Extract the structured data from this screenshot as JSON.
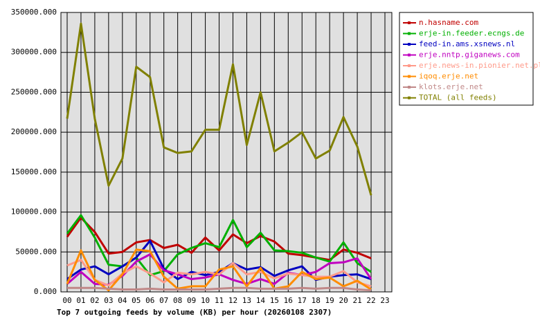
{
  "chart_data": {
    "type": "line",
    "title": "Top 7 outgoing feeds by volume (KB) per hour (20260108 2307)",
    "categories": [
      "00",
      "01",
      "02",
      "03",
      "04",
      "05",
      "06",
      "07",
      "08",
      "09",
      "10",
      "11",
      "12",
      "13",
      "14",
      "15",
      "16",
      "17",
      "18",
      "19",
      "20",
      "21",
      "22",
      "23"
    ],
    "ylim": [
      0,
      350000
    ],
    "yticks": [
      {
        "value": 0,
        "label": "0.000"
      },
      {
        "value": 50000,
        "label": "50000.000"
      },
      {
        "value": 100000,
        "label": "100000.000"
      },
      {
        "value": 150000,
        "label": "150000.000"
      },
      {
        "value": 200000,
        "label": "200000.000"
      },
      {
        "value": 250000,
        "label": "250000.000"
      },
      {
        "value": 300000,
        "label": "300000.000"
      },
      {
        "value": 350000,
        "label": "350000.000"
      }
    ],
    "grid": true,
    "legend": "right",
    "series": [
      {
        "name": "n.hasname.com",
        "color": "#c00000",
        "values": [
          69000,
          93000,
          75000,
          48000,
          50000,
          62000,
          65000,
          55000,
          59000,
          49000,
          68000,
          52000,
          72000,
          61000,
          70000,
          63000,
          48000,
          46000,
          43000,
          40000,
          53000,
          49000,
          42000,
          null
        ]
      },
      {
        "name": "erje-in.feeder.ecngs.de",
        "color": "#00b000",
        "values": [
          73000,
          96000,
          68000,
          34000,
          32000,
          43000,
          21000,
          26000,
          47000,
          55000,
          61000,
          56000,
          90000,
          56000,
          74000,
          52000,
          51000,
          49000,
          43000,
          38000,
          62000,
          36000,
          25000,
          null
        ]
      },
      {
        "name": "feed-in.ams.xsnews.nl",
        "color": "#0000c0",
        "values": [
          16000,
          28000,
          32000,
          22000,
          32000,
          43000,
          64000,
          29000,
          16000,
          25000,
          21000,
          25000,
          36000,
          28000,
          31000,
          20000,
          27000,
          32000,
          15000,
          19000,
          21000,
          22000,
          16000,
          null
        ]
      },
      {
        "name": "erje.nntp.giganews.com",
        "color": "#c000c0",
        "values": [
          10000,
          25000,
          10000,
          9000,
          20000,
          38000,
          47000,
          27000,
          22000,
          16000,
          18000,
          22000,
          15000,
          10000,
          16000,
          10000,
          24000,
          21000,
          25000,
          36000,
          37000,
          42000,
          16000,
          null
        ]
      },
      {
        "name": "erje.news-in.pionier.net.pl",
        "color": "#ff9a8a",
        "values": [
          33000,
          40000,
          15000,
          8000,
          23000,
          32000,
          23000,
          12000,
          24000,
          22000,
          25000,
          22000,
          36000,
          22000,
          25000,
          17000,
          23000,
          21000,
          19000,
          19000,
          26000,
          12000,
          7000,
          null
        ]
      },
      {
        "name": "iqoq.erje.net",
        "color": "#ff8c00",
        "values": [
          10000,
          52000,
          15000,
          2000,
          22000,
          53000,
          51000,
          19000,
          4000,
          7000,
          7000,
          28000,
          32000,
          7000,
          30000,
          4000,
          7000,
          25000,
          16000,
          18000,
          7000,
          14000,
          3000,
          null
        ]
      },
      {
        "name": "klots.erje.net",
        "color": "#c08888",
        "values": [
          5000,
          5000,
          5000,
          4000,
          3000,
          3000,
          4000,
          3000,
          3000,
          3000,
          3000,
          4000,
          5000,
          5000,
          4000,
          4000,
          4000,
          5000,
          4000,
          5000,
          5000,
          3000,
          2000,
          null
        ]
      },
      {
        "name": "TOTAL (all feeds)",
        "color": "#808000",
        "values": [
          217000,
          336000,
          217000,
          133000,
          167000,
          282000,
          269000,
          181000,
          174000,
          176000,
          203000,
          203000,
          285000,
          184000,
          250000,
          176000,
          187000,
          200000,
          167000,
          177000,
          219000,
          182000,
          121000,
          null
        ]
      }
    ]
  }
}
